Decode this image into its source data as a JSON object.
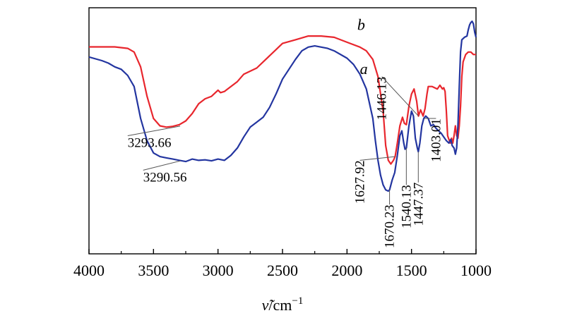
{
  "chart_data": {
    "type": "line",
    "title": "",
    "xlabel_var": "ν̃",
    "xlabel_unit": "/cm",
    "xlabel_exp": "−1",
    "ylabel": "",
    "xlim": [
      4000,
      1000
    ],
    "ylim": [
      0,
      100
    ],
    "x_ticks": [
      4000,
      3500,
      3000,
      2500,
      2000,
      1500,
      1000
    ],
    "x_tick_labels": [
      "4000",
      "3500",
      "3000",
      "2500",
      "2000",
      "1500",
      "1000"
    ],
    "grid": false,
    "series": [
      {
        "name": "b",
        "label": "b",
        "color": "#e8262d",
        "points": [
          [
            4000,
            84.1
          ],
          [
            3900,
            84.1
          ],
          [
            3800,
            84.1
          ],
          [
            3700,
            83.5
          ],
          [
            3650,
            82.0
          ],
          [
            3600,
            76.0
          ],
          [
            3550,
            64.0
          ],
          [
            3500,
            55.0
          ],
          [
            3450,
            52.0
          ],
          [
            3400,
            51.5
          ],
          [
            3350,
            51.8
          ],
          [
            3300,
            52.5
          ],
          [
            3250,
            54.0
          ],
          [
            3200,
            57.0
          ],
          [
            3150,
            61.0
          ],
          [
            3100,
            63.0
          ],
          [
            3050,
            64.0
          ],
          [
            3000,
            66.5
          ],
          [
            2980,
            65.5
          ],
          [
            2950,
            66.0
          ],
          [
            2900,
            68.0
          ],
          [
            2850,
            70.0
          ],
          [
            2800,
            73.0
          ],
          [
            2700,
            75.5
          ],
          [
            2600,
            80.5
          ],
          [
            2550,
            83.0
          ],
          [
            2500,
            85.5
          ],
          [
            2400,
            87.0
          ],
          [
            2300,
            88.5
          ],
          [
            2200,
            88.5
          ],
          [
            2100,
            88.0
          ],
          [
            2000,
            86.0
          ],
          [
            1900,
            84.0
          ],
          [
            1850,
            82.5
          ],
          [
            1800,
            79.0
          ],
          [
            1760,
            72.0
          ],
          [
            1720,
            58.0
          ],
          [
            1700,
            44.0
          ],
          [
            1680,
            38.0
          ],
          [
            1660,
            36.5
          ],
          [
            1640,
            38.0
          ],
          [
            1627,
            39.5
          ],
          [
            1610,
            45.0
          ],
          [
            1590,
            52.0
          ],
          [
            1570,
            55.5
          ],
          [
            1555,
            53.0
          ],
          [
            1540,
            52.5
          ],
          [
            1520,
            60.0
          ],
          [
            1500,
            65.0
          ],
          [
            1480,
            67.0
          ],
          [
            1460,
            62.0
          ],
          [
            1446,
            56.0
          ],
          [
            1430,
            58.5
          ],
          [
            1410,
            56.0
          ],
          [
            1395,
            59.0
          ],
          [
            1380,
            65.0
          ],
          [
            1370,
            68.0
          ],
          [
            1340,
            68.0
          ],
          [
            1300,
            67.0
          ],
          [
            1280,
            68.5
          ],
          [
            1260,
            67.0
          ],
          [
            1250,
            67.5
          ],
          [
            1240,
            66.0
          ],
          [
            1230,
            58.0
          ],
          [
            1220,
            48.0
          ],
          [
            1200,
            45.0
          ],
          [
            1190,
            47.0
          ],
          [
            1180,
            45.0
          ],
          [
            1170,
            48.0
          ],
          [
            1160,
            52.0
          ],
          [
            1150,
            48.0
          ],
          [
            1140,
            47.0
          ],
          [
            1130,
            52.0
          ],
          [
            1120,
            60.0
          ],
          [
            1110,
            72.0
          ],
          [
            1100,
            78.0
          ],
          [
            1080,
            81.0
          ],
          [
            1060,
            82.0
          ],
          [
            1040,
            82.0
          ],
          [
            1020,
            81.0
          ],
          [
            1000,
            81.0
          ]
        ]
      },
      {
        "name": "a",
        "label": "a",
        "color": "#2335a0",
        "points": [
          [
            4000,
            80.0
          ],
          [
            3900,
            78.5
          ],
          [
            3850,
            77.5
          ],
          [
            3800,
            76.0
          ],
          [
            3750,
            75.0
          ],
          [
            3700,
            72.5
          ],
          [
            3650,
            68.0
          ],
          [
            3600,
            55.0
          ],
          [
            3550,
            46.0
          ],
          [
            3500,
            41.0
          ],
          [
            3450,
            39.5
          ],
          [
            3400,
            39.0
          ],
          [
            3350,
            38.5
          ],
          [
            3300,
            38.0
          ],
          [
            3250,
            37.5
          ],
          [
            3200,
            38.5
          ],
          [
            3150,
            38.0
          ],
          [
            3100,
            38.2
          ],
          [
            3050,
            37.8
          ],
          [
            3000,
            38.5
          ],
          [
            2950,
            38.0
          ],
          [
            2900,
            40.0
          ],
          [
            2850,
            43.0
          ],
          [
            2800,
            47.5
          ],
          [
            2750,
            51.5
          ],
          [
            2700,
            53.5
          ],
          [
            2650,
            55.5
          ],
          [
            2600,
            59.5
          ],
          [
            2550,
            65.0
          ],
          [
            2500,
            71.0
          ],
          [
            2450,
            75.0
          ],
          [
            2400,
            79.0
          ],
          [
            2350,
            82.5
          ],
          [
            2300,
            84.0
          ],
          [
            2250,
            84.5
          ],
          [
            2200,
            84.0
          ],
          [
            2150,
            83.5
          ],
          [
            2100,
            82.5
          ],
          [
            2000,
            79.5
          ],
          [
            1950,
            77.0
          ],
          [
            1900,
            73.0
          ],
          [
            1850,
            67.0
          ],
          [
            1800,
            55.0
          ],
          [
            1780,
            46.0
          ],
          [
            1760,
            38.0
          ],
          [
            1740,
            32.0
          ],
          [
            1720,
            28.0
          ],
          [
            1700,
            26.0
          ],
          [
            1680,
            25.5
          ],
          [
            1670,
            26.0
          ],
          [
            1650,
            30.0
          ],
          [
            1630,
            33.0
          ],
          [
            1610,
            40.0
          ],
          [
            1590,
            48.0
          ],
          [
            1575,
            50.0
          ],
          [
            1560,
            45.0
          ],
          [
            1550,
            42.5
          ],
          [
            1540,
            43.0
          ],
          [
            1520,
            52.0
          ],
          [
            1500,
            58.0
          ],
          [
            1485,
            56.0
          ],
          [
            1470,
            47.0
          ],
          [
            1455,
            43.0
          ],
          [
            1447,
            41.5
          ],
          [
            1435,
            45.0
          ],
          [
            1420,
            52.0
          ],
          [
            1405,
            55.0
          ],
          [
            1390,
            56.0
          ],
          [
            1370,
            55.0
          ],
          [
            1350,
            52.0
          ],
          [
            1330,
            52.5
          ],
          [
            1310,
            51.0
          ],
          [
            1290,
            50.0
          ],
          [
            1270,
            49.0
          ],
          [
            1250,
            47.5
          ],
          [
            1230,
            46.0
          ],
          [
            1210,
            45.0
          ],
          [
            1195,
            46.5
          ],
          [
            1185,
            44.0
          ],
          [
            1170,
            43.0
          ],
          [
            1160,
            40.5
          ],
          [
            1150,
            43.0
          ],
          [
            1140,
            52.0
          ],
          [
            1130,
            68.0
          ],
          [
            1120,
            82.0
          ],
          [
            1110,
            87.0
          ],
          [
            1090,
            88.0
          ],
          [
            1070,
            88.5
          ],
          [
            1060,
            91.0
          ],
          [
            1050,
            93.0
          ],
          [
            1040,
            94.0
          ],
          [
            1030,
            94.5
          ],
          [
            1020,
            93.5
          ],
          [
            1010,
            90.0
          ],
          [
            1000,
            88.0
          ]
        ]
      }
    ],
    "series_labels": [
      {
        "text": "b",
        "x": 1890,
        "y": 91.0
      },
      {
        "text": "a",
        "x": 1870,
        "y": 73.0
      }
    ],
    "annotations": [
      {
        "text": "3293.66",
        "x": 3293.66,
        "y": 51.9,
        "label_x": 3700,
        "label_y": 48.0,
        "rotate": 0
      },
      {
        "text": "3290.56",
        "x": 3290.56,
        "y": 37.8,
        "label_x": 3580,
        "label_y": 34.0,
        "rotate": 0
      },
      {
        "text": "1627.92",
        "x": 1627.92,
        "y": 39.5,
        "label_x": 1900,
        "label_y": 38.0,
        "rotate": -90
      },
      {
        "text": "1446.13",
        "x": 1446.13,
        "y": 56.0,
        "label_x": 1730,
        "label_y": 72.0,
        "rotate": -90
      },
      {
        "text": "1670.23",
        "x": 1670.23,
        "y": 26.0,
        "label_x": 1670.23,
        "label_y": 20.0,
        "rotate": -90
      },
      {
        "text": "1540.13",
        "x": 1540.13,
        "y": 43.0,
        "label_x": 1540.13,
        "label_y": 28.0,
        "rotate": -90
      },
      {
        "text": "1447.37",
        "x": 1447.37,
        "y": 41.5,
        "label_x": 1447.37,
        "label_y": 29.0,
        "rotate": -90
      },
      {
        "text": "1403.01",
        "x": 1403.01,
        "y": 55.0,
        "label_x": 1310,
        "label_y": 55.0,
        "rotate": -90
      }
    ]
  }
}
